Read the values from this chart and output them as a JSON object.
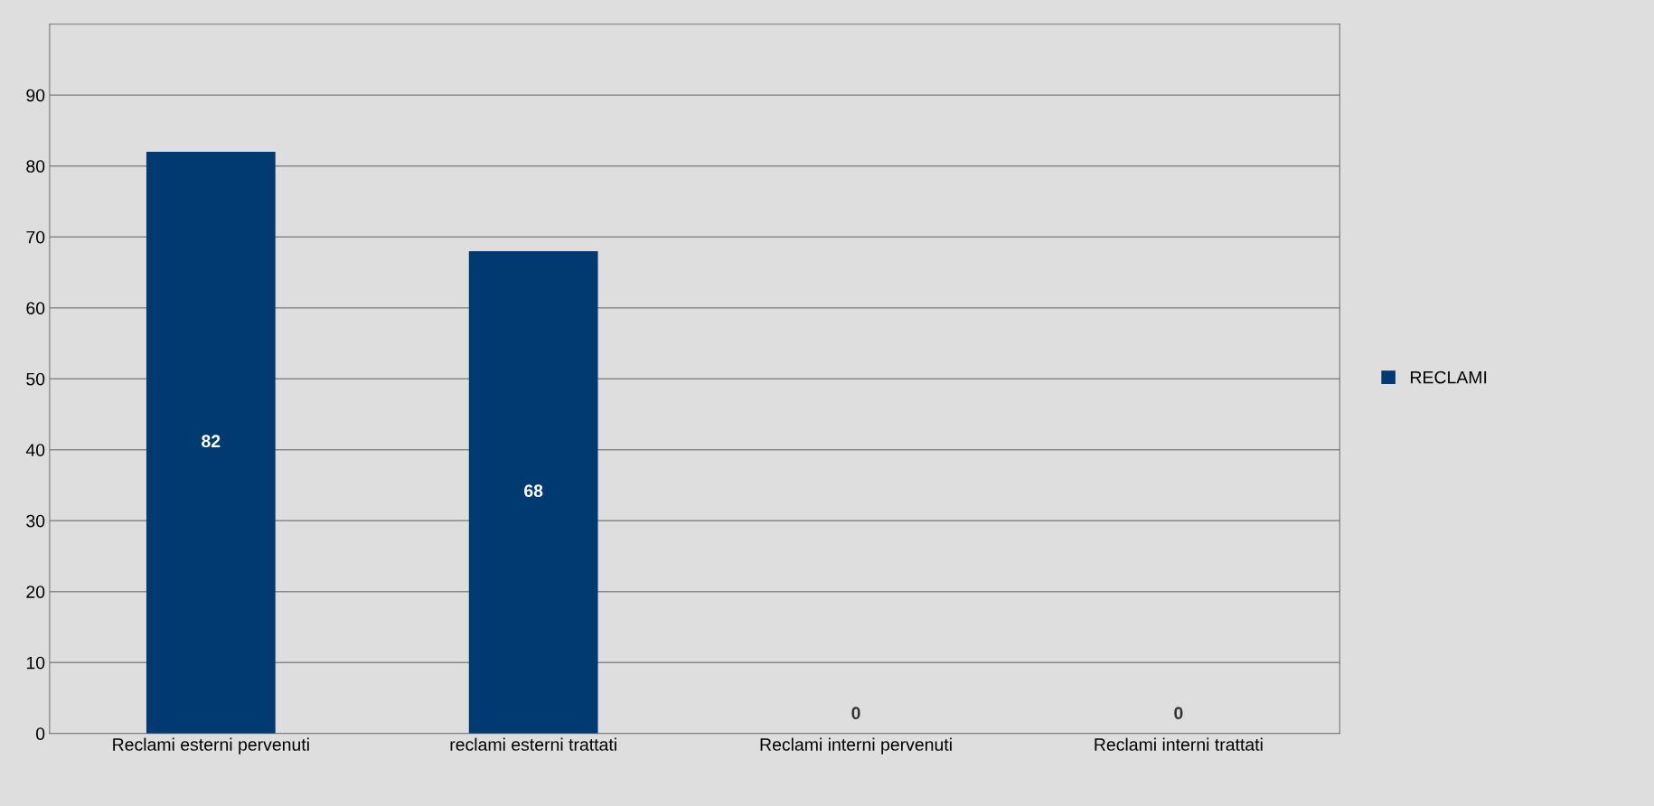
{
  "chart_data": {
    "type": "bar",
    "categories": [
      "Reclami esterni pervenuti",
      "reclami esterni trattati",
      "Reclami interni pervenuti",
      "Reclami interni trattati"
    ],
    "series": [
      {
        "name": "RECLAMI",
        "color": "#003a70",
        "values": [
          82,
          68,
          0,
          0
        ]
      }
    ],
    "ylim": [
      0,
      100
    ],
    "yticks": [
      0,
      10,
      20,
      30,
      40,
      50,
      60,
      70,
      80,
      90
    ],
    "grid": "y",
    "legend": "right",
    "data_labels": true
  }
}
